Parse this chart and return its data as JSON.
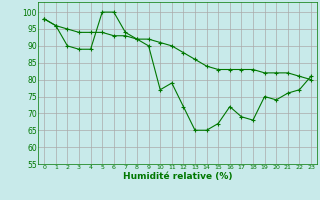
{
  "xlabel": "Humidité relative (%)",
  "bg_color": "#c8eaea",
  "grid_color": "#aaaaaa",
  "line_color": "#007700",
  "xlim": [
    -0.5,
    23.5
  ],
  "ylim": [
    55,
    103
  ],
  "yticks": [
    55,
    60,
    65,
    70,
    75,
    80,
    85,
    90,
    95,
    100
  ],
  "xticks": [
    0,
    1,
    2,
    3,
    4,
    5,
    6,
    7,
    8,
    9,
    10,
    11,
    12,
    13,
    14,
    15,
    16,
    17,
    18,
    19,
    20,
    21,
    22,
    23
  ],
  "line1_x": [
    0,
    1,
    2,
    3,
    4,
    5,
    6,
    7,
    8,
    9,
    10,
    11,
    12,
    13,
    14,
    15,
    16,
    17,
    18,
    19,
    20,
    21,
    22,
    23
  ],
  "line1_y": [
    98,
    96,
    95,
    94,
    94,
    94,
    93,
    93,
    92,
    92,
    91,
    90,
    88,
    86,
    84,
    83,
    83,
    83,
    83,
    82,
    82,
    82,
    81,
    80
  ],
  "line2_x": [
    0,
    1,
    2,
    3,
    4,
    5,
    6,
    7,
    8,
    9,
    10,
    11,
    12,
    13,
    14,
    15,
    16,
    17,
    18,
    19,
    20,
    21,
    22,
    23
  ],
  "line2_y": [
    98,
    96,
    90,
    89,
    89,
    100,
    100,
    94,
    92,
    90,
    77,
    79,
    72,
    65,
    65,
    67,
    72,
    69,
    68,
    75,
    74,
    76,
    77,
    81
  ]
}
